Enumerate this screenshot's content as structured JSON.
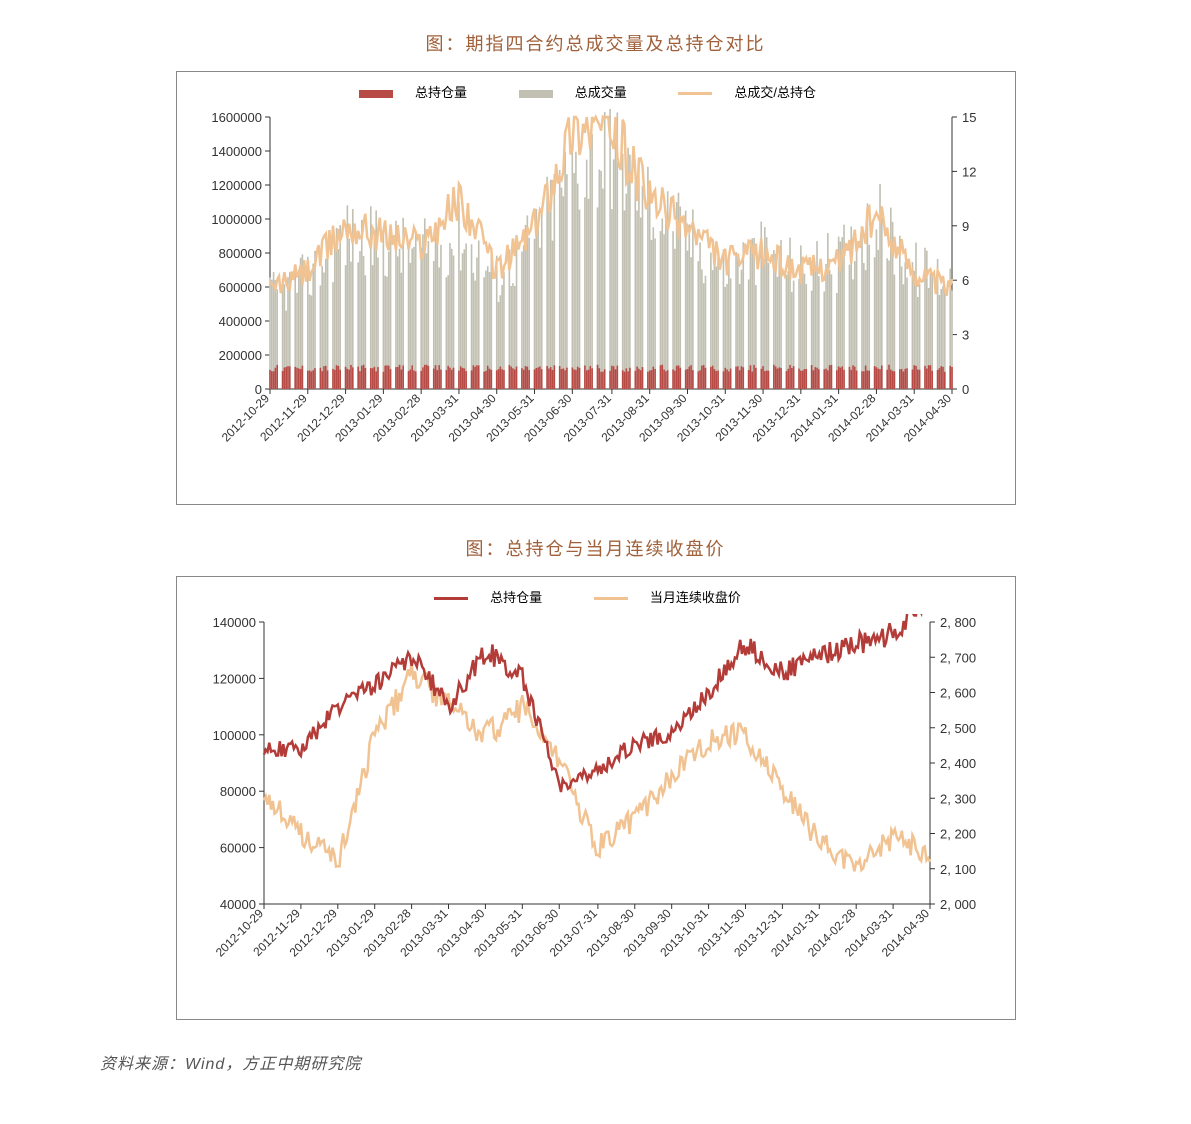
{
  "chart1": {
    "title": "图：期指四合约总成交量及总持仓对比",
    "type": "bar+line dual-axis",
    "legend": [
      {
        "label": "总持仓量",
        "color": "#b84a46",
        "shape": "bar"
      },
      {
        "label": "总成交量",
        "color": "#c1c0b2",
        "shape": "bar"
      },
      {
        "label": "总成交/总持仓",
        "color": "#f2c392",
        "shape": "line"
      }
    ],
    "x_categories": [
      "2012-10-29",
      "2012-11-29",
      "2012-12-29",
      "2013-01-29",
      "2013-02-28",
      "2013-03-31",
      "2013-04-30",
      "2013-05-31",
      "2013-06-30",
      "2013-07-31",
      "2013-08-31",
      "2013-09-30",
      "2013-10-31",
      "2013-11-30",
      "2013-12-31",
      "2014-01-31",
      "2014-02-28",
      "2014-03-31",
      "2014-04-30"
    ],
    "y_left": {
      "min": 0,
      "max": 1600000,
      "step": 200000
    },
    "y_right": {
      "min": 0,
      "max": 15,
      "step": 3
    },
    "background_color": "#ffffff",
    "tick_color": "#333333",
    "axis_color": "#888888",
    "xtick_rotation": 45,
    "xtick_fontsize": 12,
    "ytick_fontsize": 13,
    "n_points": 380,
    "series_oi": {
      "color": "#b84a46",
      "min": 80000,
      "max": 150000,
      "note": "many thin bars along bottom"
    },
    "series_vol": {
      "color": "#c1c0b2",
      "approx_values_by_month": [
        550000,
        650000,
        900000,
        850000,
        800000,
        900000,
        650000,
        900000,
        1300000,
        1400000,
        1100000,
        900000,
        700000,
        800000,
        700000,
        750000,
        1000000,
        700000,
        650000
      ]
    },
    "series_ratio": {
      "color": "#f2c392",
      "line_width": 2.5,
      "approx_values_by_month": [
        5.5,
        6.5,
        9.0,
        8.5,
        8.0,
        10.5,
        6.5,
        9.0,
        14.5,
        14.5,
        10.5,
        9.0,
        7.0,
        7.5,
        6.5,
        7.0,
        9.5,
        6.5,
        5.5
      ]
    }
  },
  "chart2": {
    "title": "图：总持仓与当月连续收盘价",
    "type": "line dual-axis",
    "legend": [
      {
        "label": "总持仓量",
        "color": "#b33b38",
        "shape": "line"
      },
      {
        "label": "当月连续收盘价",
        "color": "#f2c392",
        "shape": "line"
      }
    ],
    "x_categories": [
      "2012-10-29",
      "2012-11-29",
      "2012-12-29",
      "2013-01-29",
      "2013-02-28",
      "2013-03-31",
      "2013-04-30",
      "2013-05-31",
      "2013-06-30",
      "2013-07-31",
      "2013-08-30",
      "2013-09-30",
      "2013-10-31",
      "2013-11-30",
      "2013-12-31",
      "2014-01-31",
      "2014-02-28",
      "2014-03-31",
      "2014-04-30"
    ],
    "y_left": {
      "min": 40000,
      "max": 140000,
      "step": 20000
    },
    "y_right": {
      "min": 2000,
      "max": 2800,
      "step": 100,
      "thousands_sep": true
    },
    "background_color": "#ffffff",
    "tick_color": "#333333",
    "axis_color": "#888888",
    "xtick_rotation": 45,
    "line_width": 2.5,
    "series_oi": {
      "color": "#b33b38",
      "approx_values_by_month": [
        95000,
        95000,
        110000,
        118000,
        128000,
        110000,
        130000,
        120000,
        82000,
        87000,
        97000,
        100000,
        115000,
        132000,
        122000,
        128000,
        132000,
        136000,
        148000
      ]
    },
    "series_close": {
      "color": "#f2c392",
      "approx_values_by_month": [
        2320,
        2200,
        2120,
        2480,
        2650,
        2560,
        2480,
        2560,
        2400,
        2160,
        2240,
        2360,
        2460,
        2480,
        2320,
        2180,
        2100,
        2190,
        2140
      ]
    }
  },
  "source": "资料来源：Wind，方正中期研究院"
}
